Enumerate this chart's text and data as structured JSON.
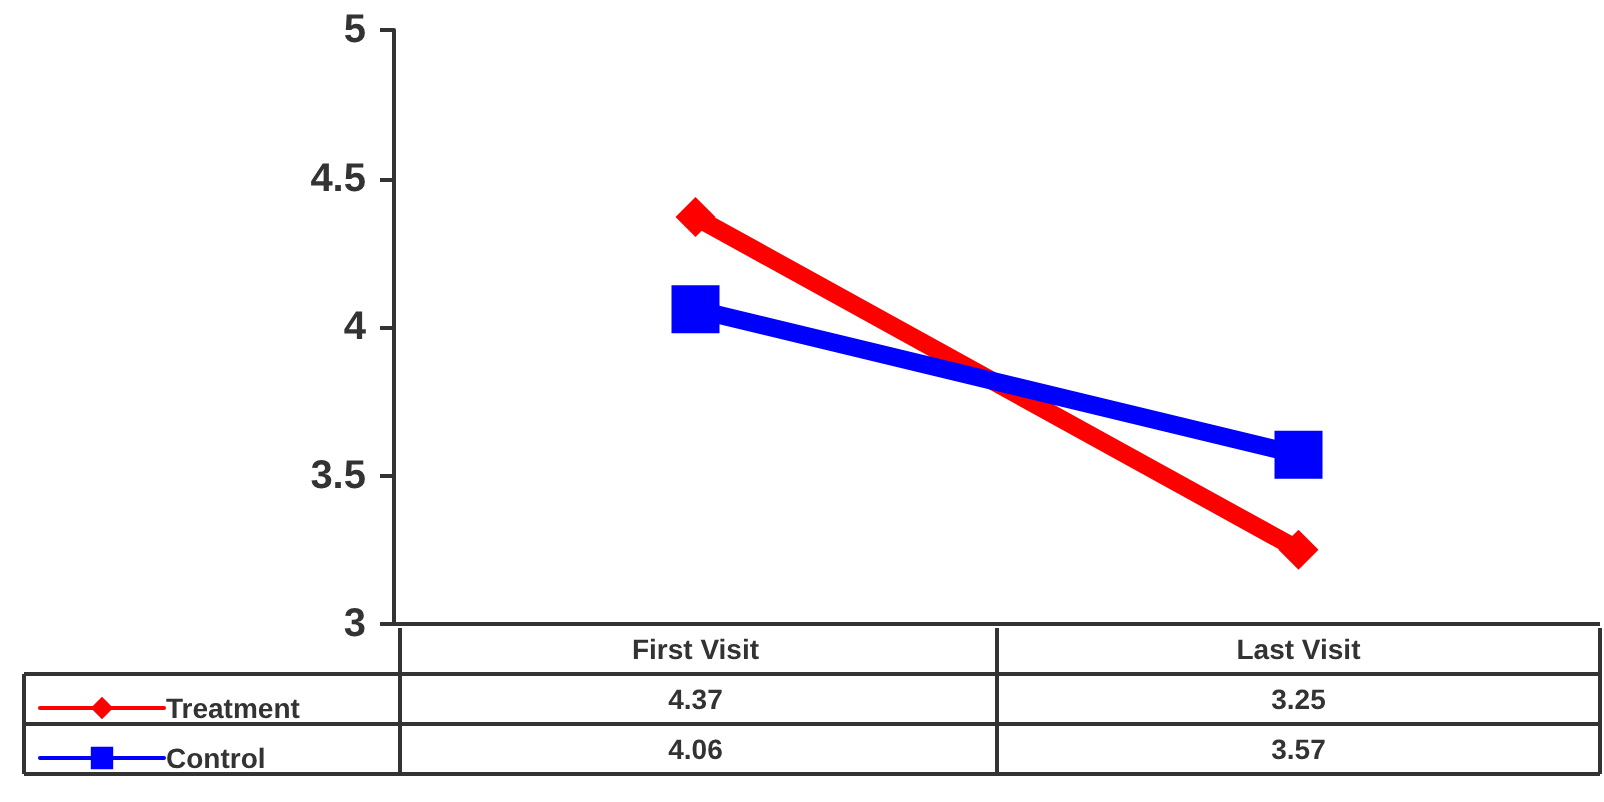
{
  "chart_data": {
    "type": "line",
    "categories": [
      "First Visit",
      "Last Visit"
    ],
    "series": [
      {
        "name": "Treatment",
        "color": "#ff0000",
        "marker": "diamond",
        "values": [
          4.37,
          3.25
        ]
      },
      {
        "name": "Control",
        "color": "#0000ff",
        "marker": "square",
        "values": [
          4.06,
          3.57
        ]
      }
    ],
    "ylim": [
      3,
      5
    ],
    "yticks": [
      3,
      3.5,
      4,
      4.5,
      5
    ],
    "grid": false,
    "legend": "bottom left",
    "data_labels": true
  }
}
